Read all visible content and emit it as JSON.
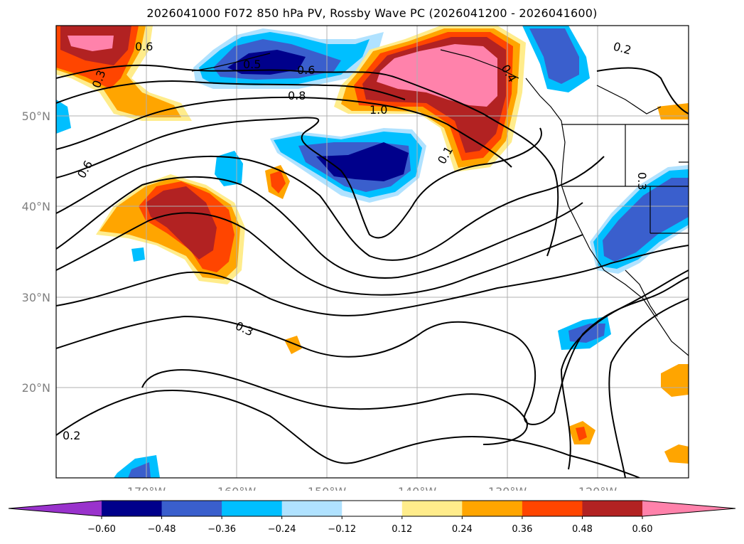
{
  "title": "2026041000 F072 850 hPa PV, Rossby Wave PC (2026041200 - 2026041600)",
  "map": {
    "lat_labels": [
      "50°N",
      "40°N",
      "30°N",
      "20°N"
    ],
    "lon_labels": [
      "170°W",
      "160°W",
      "150°W",
      "140°W",
      "130°W",
      "120°W"
    ],
    "contour_labels": [
      "0.6",
      "0.5",
      "0.6",
      "0.8",
      "1.0",
      "0.2",
      "0.6",
      "0.3",
      "0.3",
      "0.2",
      "0.4",
      "0.3",
      "0.1"
    ]
  },
  "colorbar": {
    "tick_labels": [
      "−0.60",
      "−0.48",
      "−0.36",
      "−0.24",
      "−0.12",
      "0.12",
      "0.24",
      "0.36",
      "0.48",
      "0.60"
    ],
    "colors": [
      "#9932CC",
      "#00008B",
      "#3A5FCD",
      "#00BFFF",
      "#B0E2FF",
      "#FFFFFF",
      "#FFEC8B",
      "#FFA500",
      "#FF4500",
      "#B22222",
      "#FF82AB"
    ]
  }
}
